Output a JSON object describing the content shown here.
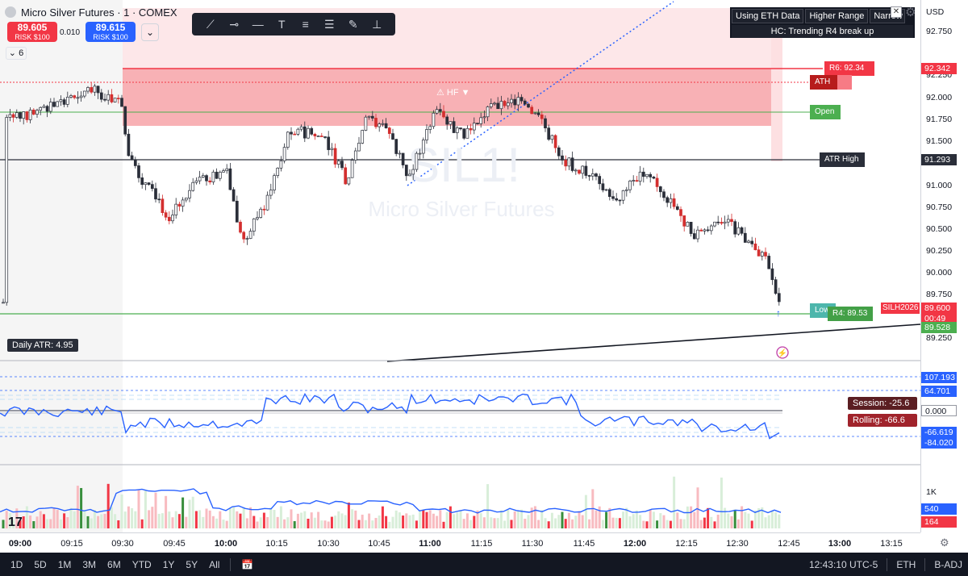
{
  "header": {
    "symbol_title": "Micro Silver Futures · 1 · COMEX",
    "sell_price": "89.605",
    "sell_risk": "RISK $100",
    "buy_price": "89.615",
    "buy_risk": "RISK $100",
    "spread": "0.010",
    "collapse_count": "6"
  },
  "toolbar": {
    "tools": [
      "trend-line-icon",
      "horizontal-ray-icon",
      "horizontal-line-icon",
      "text-icon",
      "fib-retracement-icon",
      "parallel-channel-icon",
      "brush-icon",
      "long-position-icon"
    ]
  },
  "info_table": {
    "cells": [
      "Using ETH Data",
      "Higher Range",
      "Narrow Ra"
    ],
    "status": "HC: Trending R4 break up"
  },
  "price_scale": {
    "currency": "USD",
    "ticks": [
      "92.750",
      "92.250",
      "92.000",
      "91.750",
      "91.500",
      "91.000",
      "90.750",
      "90.500",
      "90.250",
      "90.000",
      "89.750",
      "89.250"
    ],
    "labels": {
      "r6": "92.342",
      "atr_high": "91.293",
      "last": "89.600",
      "countdown": "00:49",
      "low": "89.528",
      "symbol": "SILH2026"
    }
  },
  "markers": {
    "r6": "R6: 92.34",
    "ath": "ATH",
    "open": "Open",
    "atr_high": "ATR High",
    "r4": "R4: 89.53",
    "low": "Low",
    "hf": "⚠ HF ▼"
  },
  "watermark": {
    "ticker": "SIL1!",
    "name": "Micro Silver Futures"
  },
  "atr": {
    "label": "Daily ATR: 4.95"
  },
  "oscillator": {
    "session": "Session: -25.6",
    "rolling": "Rolling: -66.6",
    "labels": [
      "107.193",
      "64.701",
      "0.000",
      "-66.619",
      "-84.020"
    ]
  },
  "volume": {
    "labels": [
      "1K",
      "540",
      "164"
    ]
  },
  "time_axis": {
    "ticks": [
      {
        "t": "09:00",
        "bold": true
      },
      {
        "t": "09:15",
        "bold": false
      },
      {
        "t": "09:30",
        "bold": false
      },
      {
        "t": "09:45",
        "bold": false
      },
      {
        "t": "10:00",
        "bold": true
      },
      {
        "t": "10:15",
        "bold": false
      },
      {
        "t": "10:30",
        "bold": false
      },
      {
        "t": "10:45",
        "bold": false
      },
      {
        "t": "11:00",
        "bold": true
      },
      {
        "t": "11:15",
        "bold": false
      },
      {
        "t": "11:30",
        "bold": false
      },
      {
        "t": "11:45",
        "bold": false
      },
      {
        "t": "12:00",
        "bold": true
      },
      {
        "t": "12:15",
        "bold": false
      },
      {
        "t": "12:30",
        "bold": false
      },
      {
        "t": "12:45",
        "bold": false
      },
      {
        "t": "13:00",
        "bold": true
      },
      {
        "t": "13:15",
        "bold": false
      }
    ]
  },
  "bottom_bar": {
    "ranges": [
      "1D",
      "5D",
      "1M",
      "3M",
      "6M",
      "YTD",
      "1Y",
      "5Y",
      "All"
    ],
    "clock": "12:43:10 UTC-5",
    "session": "ETH",
    "adj": "B-ADJ"
  },
  "colors": {
    "up": "#2a2e39",
    "down": "#f23645",
    "resist_zone": "#f7a8ad",
    "green": "#4caf50",
    "blue": "#2962ff"
  }
}
